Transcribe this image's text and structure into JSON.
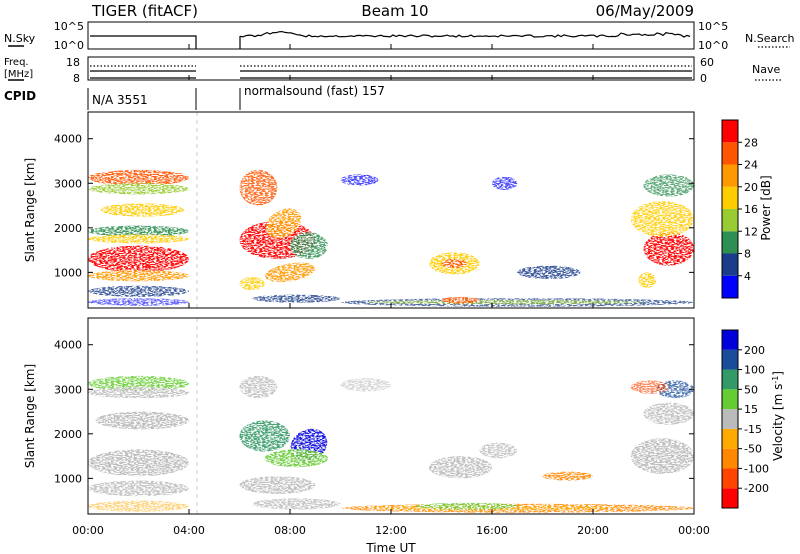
{
  "header": {
    "left": "TIGER (fitACF)",
    "center": "Beam 10",
    "right": "06/May/2009"
  },
  "nsky": {
    "label": "N.Sky",
    "ticks": [
      "10^5",
      "10^0"
    ],
    "right_label": "N.Search",
    "right_ticks": [
      "10^5",
      "10^0"
    ]
  },
  "freq": {
    "label_line1": "Freq.",
    "label_line2": "[MHz]",
    "ticks": [
      "18",
      "8"
    ],
    "right_label": "Nave",
    "right_ticks": [
      "60",
      "0"
    ]
  },
  "cpid": {
    "label": "CPID",
    "segments": [
      "N/A 3551",
      "normalsound (fast) 157"
    ]
  },
  "time_axis": {
    "label": "Time UT",
    "ticks": [
      "00:00",
      "04:00",
      "08:00",
      "12:00",
      "16:00",
      "20:00",
      "00:00"
    ]
  },
  "colors": {
    "power": [
      "#0000ff",
      "#1a3c8a",
      "#2d8f52",
      "#99cc33",
      "#ffcc00",
      "#ff9900",
      "#ff5500",
      "#ff0000"
    ],
    "velocity": [
      "#ff0000",
      "#ff4400",
      "#ff8800",
      "#ffaa00",
      "#bbbbbb",
      "#66cc33",
      "#339966",
      "#1a4d99",
      "#0000dd"
    ]
  },
  "chart_data": [
    {
      "type": "heatmap",
      "panel": "power",
      "ylabel": "Slant Range [km]",
      "xlabel": "",
      "ylim": [
        200,
        4600
      ],
      "yticks": [
        1000,
        2000,
        3000,
        4000
      ],
      "xlim_hours": [
        0,
        24
      ],
      "colorbar": {
        "label": "Power [dB]",
        "ticks": [
          "4",
          "8",
          "12",
          "16",
          "20",
          "24",
          "28"
        ],
        "range": [
          0,
          32
        ]
      },
      "data_gap_hours": [
        4,
        6
      ]
    },
    {
      "type": "heatmap",
      "panel": "velocity",
      "ylabel": "Slant Range [km]",
      "xlabel": "Time UT",
      "ylim": [
        200,
        4600
      ],
      "yticks": [
        1000,
        2000,
        3000,
        4000
      ],
      "xlim_hours": [
        0,
        24
      ],
      "colorbar": {
        "label": "Velocity [m s-1]",
        "ticks": [
          "200",
          "100",
          "50",
          "15",
          "-15",
          "-50",
          "-100",
          "-200"
        ]
      },
      "data_gap_hours": [
        4,
        6
      ]
    }
  ]
}
